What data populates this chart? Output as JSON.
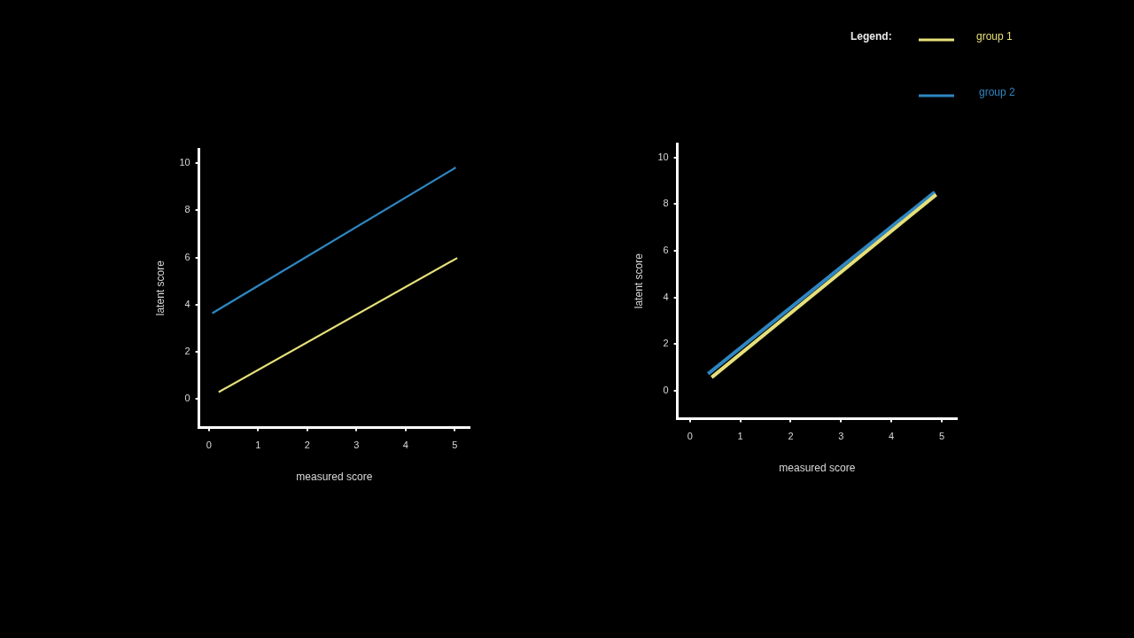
{
  "chart_data": [
    {
      "type": "line",
      "xlabel": "measured score",
      "ylabel": "latent score",
      "xlim": [
        -0.2,
        5.3
      ],
      "ylim": [
        -1.2,
        10.6
      ],
      "xticks": [
        0,
        1,
        2,
        3,
        4,
        5
      ],
      "yticks": [
        0,
        2,
        4,
        6,
        8,
        10
      ],
      "marker": "none",
      "legend": false,
      "series": [
        {
          "color": "#2e86c1",
          "x": [
            0.07,
            5.02
          ],
          "values": [
            3.64,
            9.81
          ]
        },
        {
          "color": "#e6e07a",
          "x": [
            0.2,
            5.05
          ],
          "values": [
            0.3,
            5.98
          ]
        }
      ]
    },
    {
      "type": "line",
      "xlabel": "measured score",
      "ylabel": "latent score",
      "xlim": [
        -0.25,
        5.3
      ],
      "ylim": [
        -1.2,
        10.6
      ],
      "xticks": [
        0,
        1,
        2,
        3,
        4,
        5
      ],
      "yticks": [
        0,
        2,
        4,
        6,
        8,
        10
      ],
      "marker": "none",
      "legend": "top right",
      "legend_title": "Legend:",
      "series": [
        {
          "name": "group 1",
          "color": "#e6e07a",
          "x": [
            0.43,
            4.89
          ],
          "values": [
            0.57,
            8.41
          ]
        },
        {
          "name": "group 2",
          "color": "#2e86c1",
          "x": [
            0.36,
            4.86
          ],
          "values": [
            0.72,
            8.52
          ]
        }
      ]
    }
  ]
}
